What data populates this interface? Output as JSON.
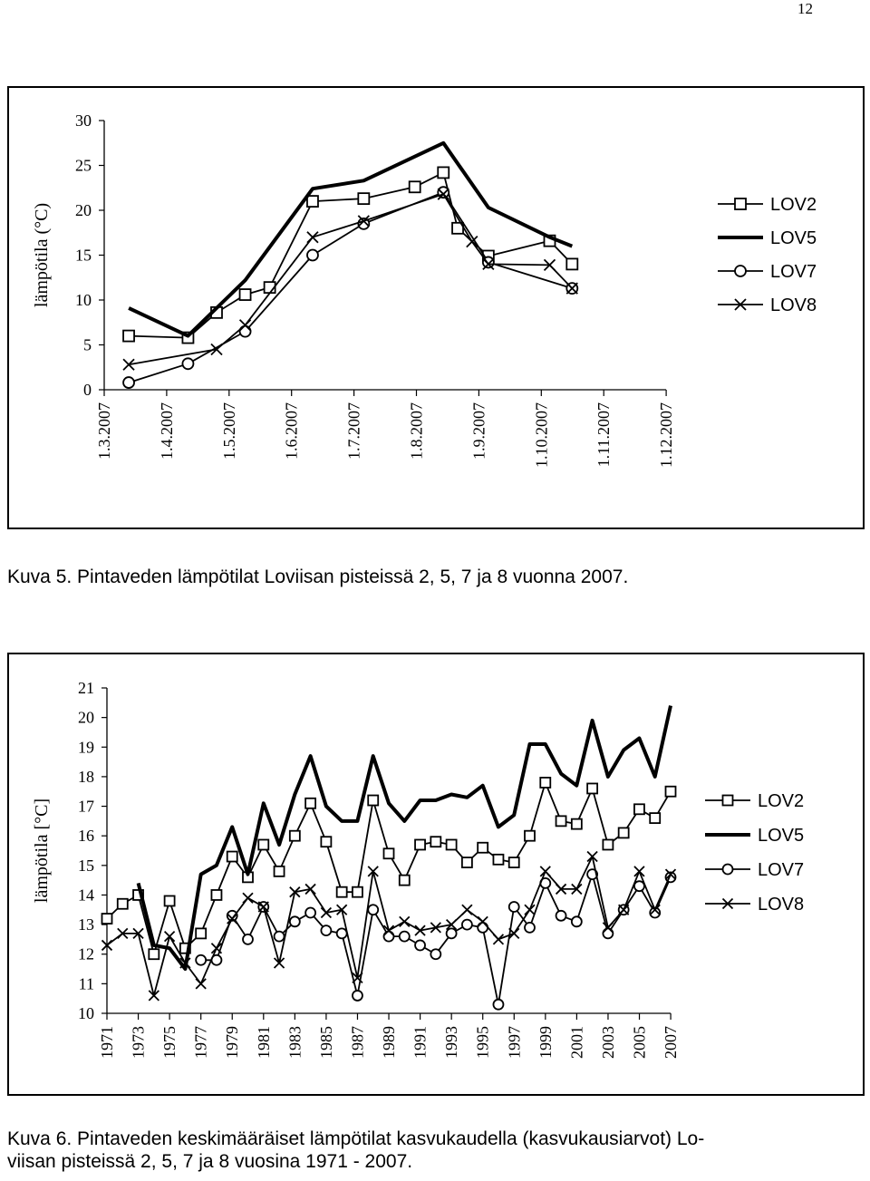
{
  "page": {
    "number": "12"
  },
  "captions": [
    "Kuva 5. Pintaveden lämpötilat Loviisan pisteissä 2, 5, 7 ja 8 vuonna 2007.",
    "Kuva 6. Pintaveden keskimääräiset lämpötilat kasvukaudella (kasvukausiarvot) Lo-",
    "viisan pisteissä 2, 5, 7 ja 8 vuosina 1971 - 2007."
  ],
  "chart_data": [
    {
      "type": "line",
      "title": "",
      "xlabel": "",
      "ylabel": "lämpötila (°C)",
      "ylim": [
        0,
        30
      ],
      "yticks": [
        0,
        5,
        10,
        15,
        20,
        25,
        30
      ],
      "x_tick_labels": [
        "1.3.2007",
        "1.4.2007",
        "1.5.2007",
        "1.6.2007",
        "1.7.2007",
        "1.8.2007",
        "1.9.2007",
        "1.10.2007",
        "1.11.2007",
        "1.12.2007"
      ],
      "xlim_days": [
        0,
        275
      ],
      "legend_position": "right",
      "series": [
        {
          "name": "LOV2",
          "marker": "square",
          "x": [
            "2007-03-13",
            "2007-04-11",
            "2007-04-25",
            "2007-05-09",
            "2007-05-21",
            "2007-06-11",
            "2007-07-06",
            "2007-07-31",
            "2007-08-14",
            "2007-08-21",
            "2007-09-05",
            "2007-10-05",
            "2007-10-16"
          ],
          "y": [
            6.0,
            5.8,
            8.6,
            10.6,
            11.4,
            21.0,
            21.3,
            22.6,
            24.2,
            18.0,
            14.9,
            16.6,
            14.0
          ]
        },
        {
          "name": "LOV5",
          "marker": "none",
          "x": [
            "2007-03-13",
            "2007-04-11",
            "2007-05-09",
            "2007-06-11",
            "2007-07-06",
            "2007-08-14",
            "2007-09-05",
            "2007-10-05",
            "2007-10-16"
          ],
          "y": [
            9.1,
            6.0,
            12.2,
            22.4,
            23.3,
            27.5,
            20.3,
            17.0,
            16.0
          ]
        },
        {
          "name": "LOV7",
          "marker": "circle",
          "x": [
            "2007-03-13",
            "2007-04-11",
            "2007-05-09",
            "2007-06-11",
            "2007-07-06",
            "2007-08-14",
            "2007-09-05",
            "2007-10-16"
          ],
          "y": [
            0.8,
            2.9,
            6.5,
            15.0,
            18.5,
            22.0,
            14.2,
            11.3
          ]
        },
        {
          "name": "LOV8",
          "marker": "x",
          "x": [
            "2007-03-13",
            "2007-04-25",
            "2007-05-09",
            "2007-06-11",
            "2007-07-06",
            "2007-08-14",
            "2007-08-28",
            "2007-09-05",
            "2007-10-05",
            "2007-10-16"
          ],
          "y": [
            2.8,
            4.5,
            7.2,
            17.0,
            18.8,
            21.8,
            16.5,
            14.0,
            13.9,
            11.3
          ]
        }
      ]
    },
    {
      "type": "line",
      "title": "",
      "xlabel": "",
      "ylabel": "lämpötila [°C]",
      "ylim": [
        10,
        21
      ],
      "yticks": [
        10,
        11,
        12,
        13,
        14,
        15,
        16,
        17,
        18,
        19,
        20,
        21
      ],
      "x_tick_labels": [
        "1971",
        "1973",
        "1975",
        "1977",
        "1979",
        "1981",
        "1983",
        "1985",
        "1987",
        "1989",
        "1991",
        "1993",
        "1995",
        "1997",
        "1999",
        "2001",
        "2003",
        "2005",
        "2007"
      ],
      "xlim": [
        1971,
        2007
      ],
      "legend_position": "right",
      "series": [
        {
          "name": "LOV2",
          "marker": "square",
          "x": [
            1971,
            1972,
            1973,
            1974,
            1975,
            1976,
            1977,
            1978,
            1979,
            1980,
            1981,
            1982,
            1983,
            1984,
            1985,
            1986,
            1987,
            1988,
            1989,
            1990,
            1991,
            1992,
            1993,
            1994,
            1995,
            1996,
            1997,
            1998,
            1999,
            2000,
            2001,
            2002,
            2003,
            2004,
            2005,
            2006,
            2007
          ],
          "y": [
            13.2,
            13.7,
            14.0,
            12.0,
            13.8,
            12.2,
            12.7,
            14.0,
            15.3,
            14.6,
            15.7,
            14.8,
            16.0,
            17.1,
            15.8,
            14.1,
            14.1,
            17.2,
            15.4,
            14.5,
            15.7,
            15.8,
            15.7,
            15.1,
            15.6,
            15.2,
            15.1,
            16.0,
            17.8,
            16.5,
            16.4,
            17.6,
            15.7,
            16.1,
            16.9,
            16.6,
            17.5
          ]
        },
        {
          "name": "LOV5",
          "marker": "none",
          "x": [
            1973,
            1974,
            1975,
            1976,
            1977,
            1978,
            1979,
            1980,
            1981,
            1982,
            1983,
            1984,
            1985,
            1986,
            1987,
            1988,
            1989,
            1990,
            1991,
            1992,
            1993,
            1994,
            1995,
            1996,
            1997,
            1998,
            1999,
            2000,
            2001,
            2002,
            2003,
            2004,
            2005,
            2006,
            2007
          ],
          "y": [
            14.4,
            12.3,
            12.2,
            11.5,
            14.7,
            15.0,
            16.3,
            14.7,
            17.1,
            15.7,
            17.4,
            18.7,
            17.0,
            16.5,
            16.5,
            18.7,
            17.1,
            16.5,
            17.2,
            17.2,
            17.4,
            17.3,
            17.7,
            16.3,
            16.7,
            19.1,
            19.1,
            18.1,
            17.7,
            19.9,
            18.0,
            18.9,
            19.3,
            18.0,
            20.4
          ]
        },
        {
          "name": "LOV7",
          "marker": "circle",
          "x": [
            1977,
            1978,
            1979,
            1980,
            1981,
            1982,
            1983,
            1984,
            1985,
            1986,
            1987,
            1988,
            1989,
            1990,
            1991,
            1992,
            1993,
            1994,
            1995,
            1996,
            1997,
            1998,
            1999,
            2000,
            2001,
            2002,
            2003,
            2004,
            2005,
            2006,
            2007
          ],
          "y": [
            11.8,
            11.8,
            13.3,
            12.5,
            13.6,
            12.6,
            13.1,
            13.4,
            12.8,
            12.7,
            10.6,
            13.5,
            12.6,
            12.6,
            12.3,
            12.0,
            12.7,
            13.0,
            12.9,
            10.3,
            13.6,
            12.9,
            14.4,
            13.3,
            13.1,
            14.7,
            12.7,
            13.5,
            14.3,
            13.4,
            14.6
          ]
        },
        {
          "name": "LOV8",
          "marker": "x",
          "x": [
            1971,
            1972,
            1973,
            1974,
            1975,
            1976,
            1977,
            1978,
            1979,
            1980,
            1981,
            1982,
            1983,
            1984,
            1985,
            1986,
            1987,
            1988,
            1989,
            1990,
            1991,
            1992,
            1993,
            1994,
            1995,
            1996,
            1997,
            1998,
            1999,
            2000,
            2001,
            2002,
            2003,
            2004,
            2005,
            2006,
            2007
          ],
          "y": [
            12.3,
            12.7,
            12.7,
            10.6,
            12.6,
            11.7,
            11.0,
            12.2,
            13.2,
            13.9,
            13.6,
            11.7,
            14.1,
            14.2,
            13.4,
            13.5,
            11.2,
            14.8,
            12.8,
            13.1,
            12.8,
            12.9,
            13.0,
            13.5,
            13.1,
            12.5,
            12.7,
            13.5,
            14.8,
            14.2,
            14.2,
            15.3,
            12.9,
            13.5,
            14.8,
            13.5,
            14.7
          ]
        }
      ]
    }
  ]
}
